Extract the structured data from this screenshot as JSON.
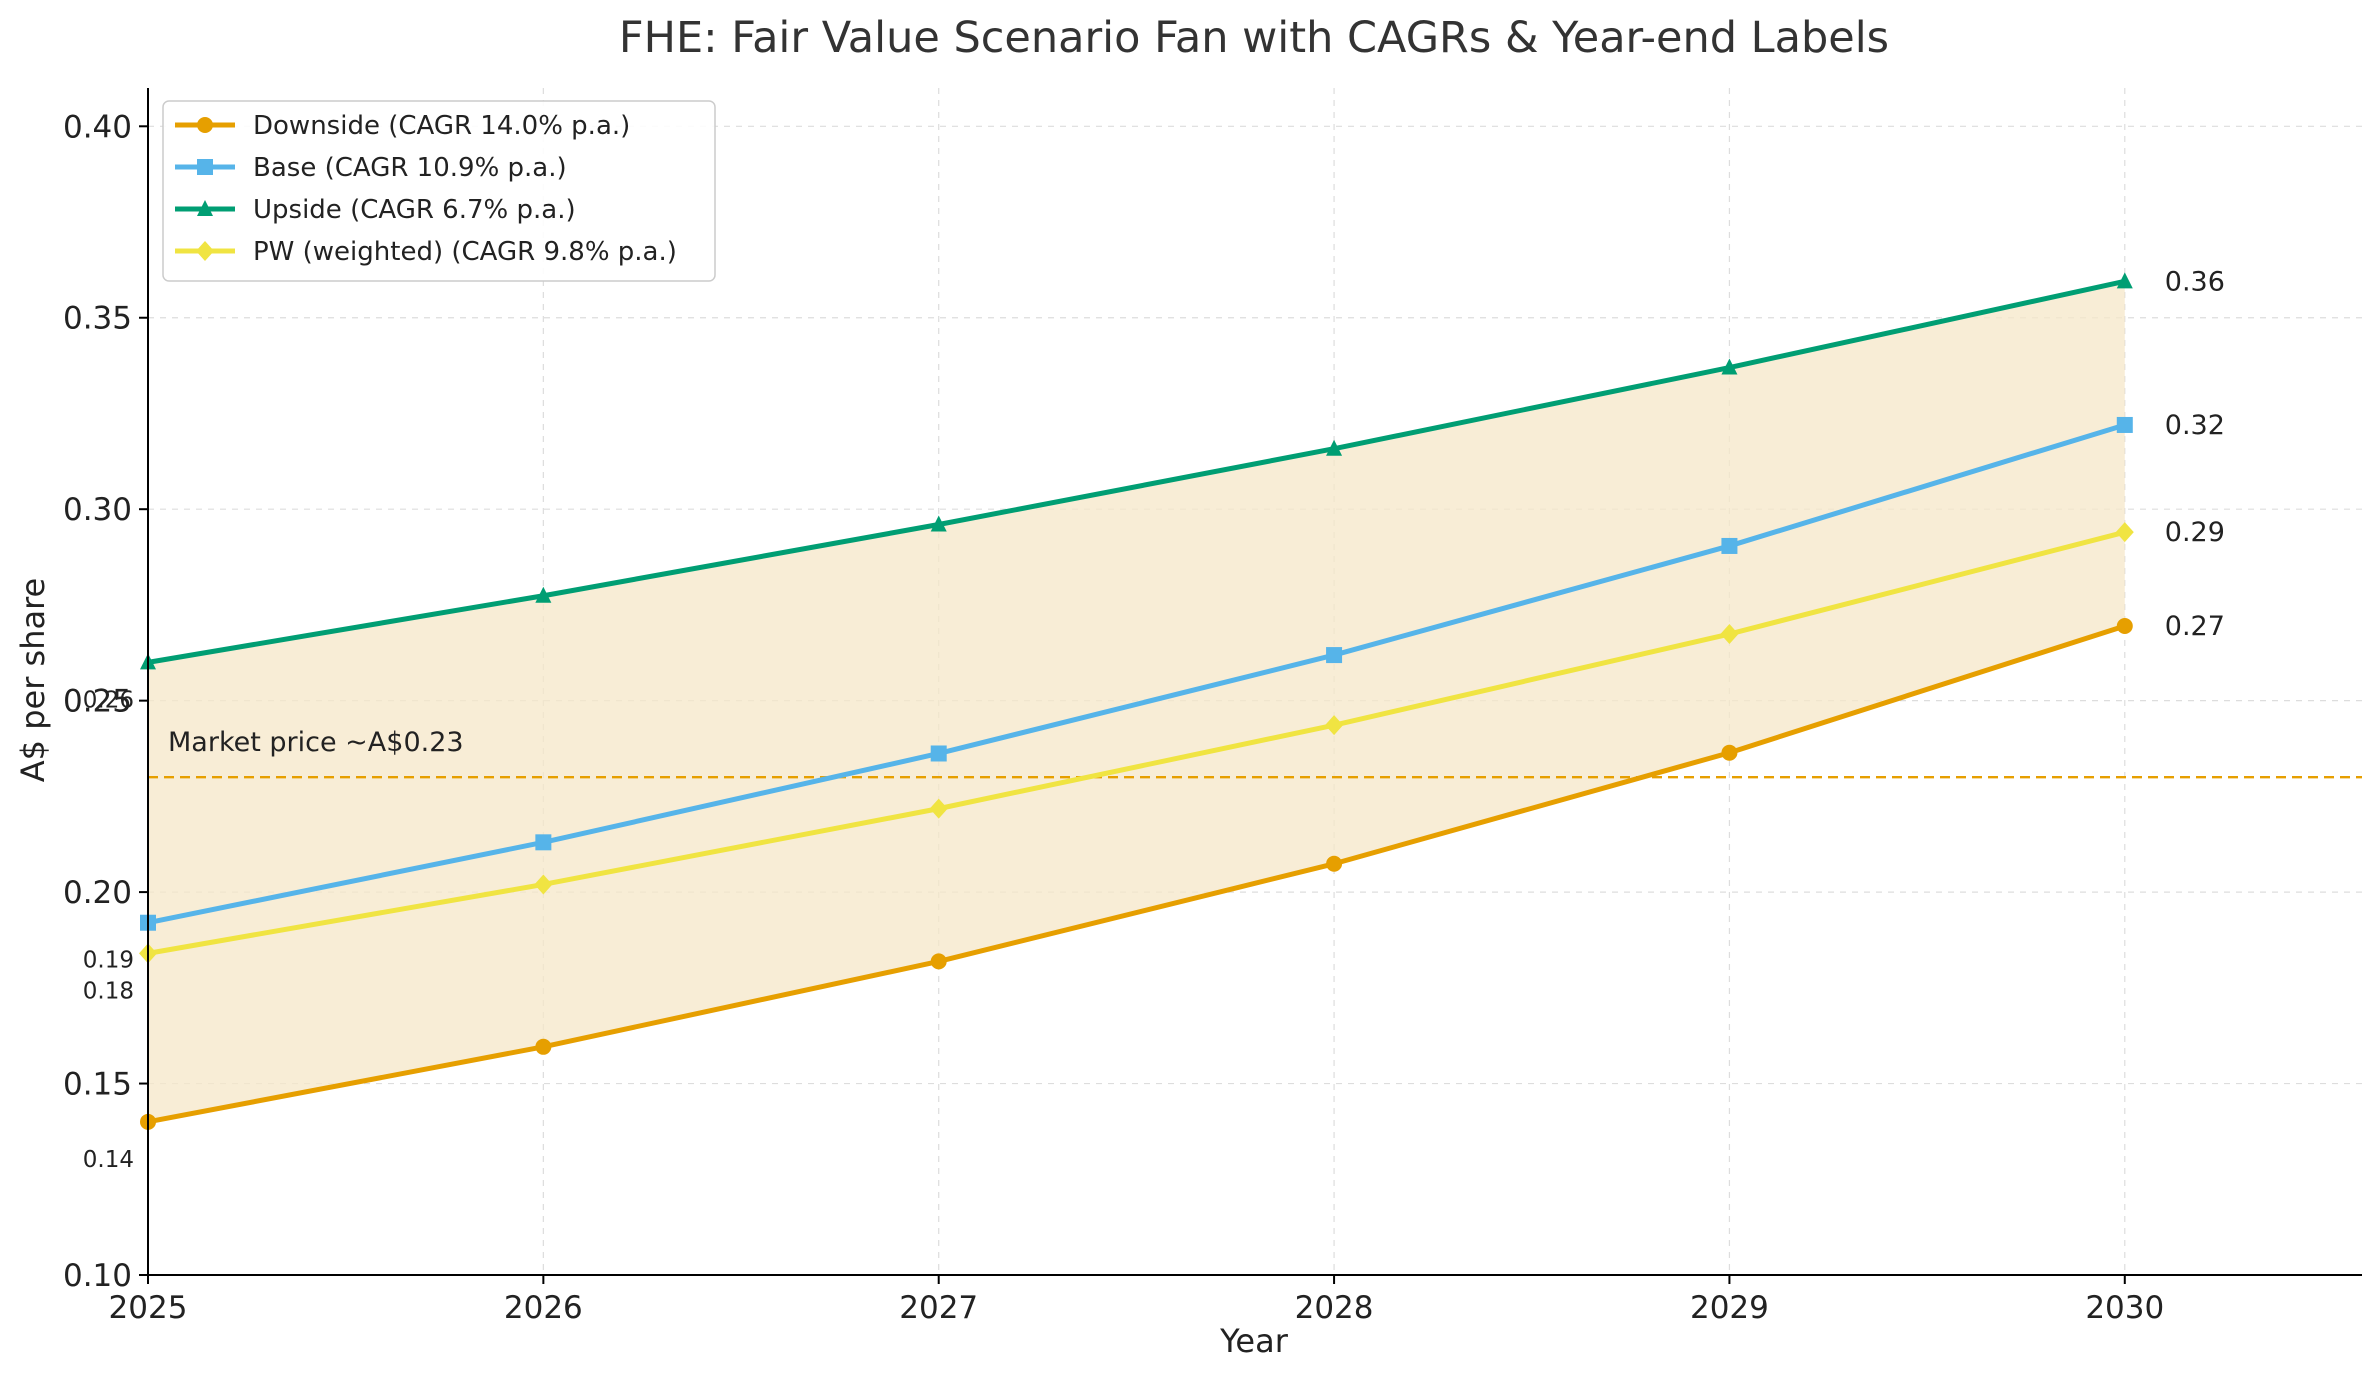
{
  "chart_data": {
    "type": "line",
    "title": "FHE: Fair Value Scenario Fan with CAGRs & Year-end Labels",
    "xlabel": "Year",
    "ylabel": "A$ per share",
    "x": [
      2025,
      2026,
      2027,
      2028,
      2029,
      2030
    ],
    "x_tick_labels": [
      "2025",
      "2026",
      "2027",
      "2028",
      "2029",
      "2030"
    ],
    "xlim": [
      2025,
      2030.6
    ],
    "ylim": [
      0.1,
      0.41
    ],
    "y_ticks": [
      0.1,
      0.15,
      0.2,
      0.25,
      0.3,
      0.35,
      0.4
    ],
    "y_tick_labels": [
      "0.10",
      "0.15",
      "0.20",
      "0.25",
      "0.30",
      "0.35",
      "0.40"
    ],
    "grid": true,
    "legend_position": "top-left",
    "series": [
      {
        "name": "Downside (CAGR 14.0% p.a.)",
        "color": "#E69F00",
        "marker": "circle",
        "values": [
          0.14,
          0.1596,
          0.1819,
          0.2074,
          0.2364,
          0.2695
        ],
        "start_label": "0.14",
        "end_label": "0.27"
      },
      {
        "name": "Base (CAGR 10.9% p.a.)",
        "color": "#56B4E9",
        "marker": "square",
        "values": [
          0.192,
          0.213,
          0.2362,
          0.2619,
          0.2904,
          0.322
        ],
        "start_label": "0.19",
        "end_label": "0.32"
      },
      {
        "name": "Upside (CAGR 6.7% p.a.)",
        "color": "#009E73",
        "marker": "triangle",
        "values": [
          0.26,
          0.2774,
          0.296,
          0.3158,
          0.337,
          0.3595
        ],
        "start_label": "0.26",
        "end_label": "0.36"
      },
      {
        "name": "PW (weighted) (CAGR 9.8% p.a.)",
        "color": "#F0E442",
        "marker": "diamond",
        "values": [
          0.184,
          0.202,
          0.2218,
          0.2436,
          0.2674,
          0.294
        ],
        "start_label": "0.18",
        "end_label": "0.29"
      }
    ],
    "band": {
      "lower": "Downside (CAGR 14.0% p.a.)",
      "upper": "Upside (CAGR 6.7% p.a.)",
      "color": "#F6E7C8"
    },
    "reference_line": {
      "value": 0.23,
      "label": "Market price ~A$0.23",
      "color": "#E69F00",
      "style": "dashed"
    }
  }
}
